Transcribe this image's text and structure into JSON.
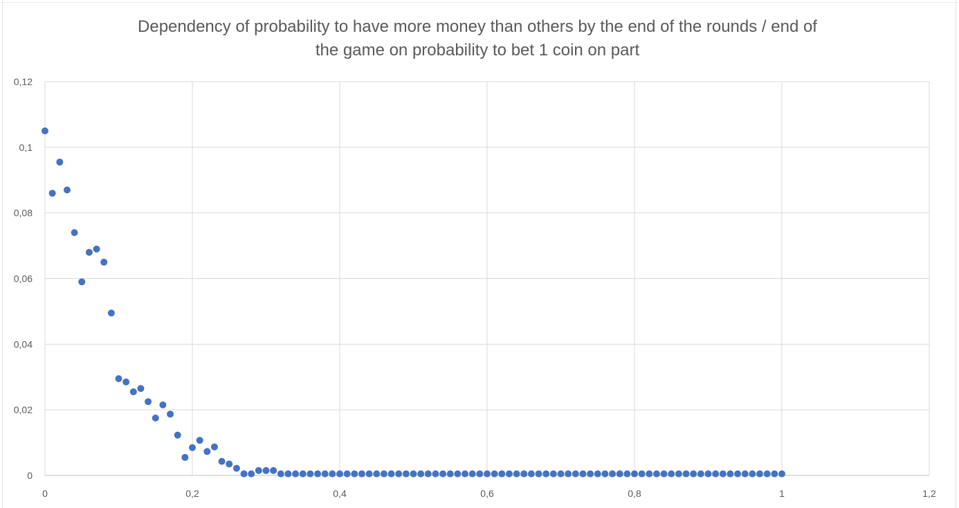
{
  "chart_data": {
    "type": "scatter",
    "title_lines": [
      "Dependency of probability to have more money than others by the end of the rounds / end of",
      "the game on probability to bet 1 coin on part"
    ],
    "xlabel": "",
    "ylabel": "",
    "xlim": [
      0,
      1.2
    ],
    "ylim": [
      0,
      0.12
    ],
    "x_ticks": [
      "0",
      "0,2",
      "0,4",
      "0,6",
      "0,8",
      "1",
      "1,2"
    ],
    "y_ticks": [
      "0",
      "0,02",
      "0,04",
      "0,06",
      "0,08",
      "0,1",
      "0,12"
    ],
    "grid": true,
    "legend": "none",
    "marker_color": "#4472C4",
    "points": [
      [
        0.0,
        0.105
      ],
      [
        0.01,
        0.086
      ],
      [
        0.02,
        0.0955
      ],
      [
        0.03,
        0.087
      ],
      [
        0.04,
        0.074
      ],
      [
        0.05,
        0.059
      ],
      [
        0.06,
        0.068
      ],
      [
        0.07,
        0.069
      ],
      [
        0.08,
        0.065
      ],
      [
        0.09,
        0.0495
      ],
      [
        0.1,
        0.0295
      ],
      [
        0.11,
        0.0285
      ],
      [
        0.12,
        0.0255
      ],
      [
        0.13,
        0.0265
      ],
      [
        0.14,
        0.0225
      ],
      [
        0.15,
        0.0175
      ],
      [
        0.16,
        0.0215
      ],
      [
        0.17,
        0.0187
      ],
      [
        0.18,
        0.0123
      ],
      [
        0.19,
        0.0055
      ],
      [
        0.2,
        0.0085
      ],
      [
        0.21,
        0.0107
      ],
      [
        0.22,
        0.0073
      ],
      [
        0.23,
        0.0087
      ],
      [
        0.24,
        0.0043
      ],
      [
        0.25,
        0.0035
      ],
      [
        0.26,
        0.0022
      ],
      [
        0.27,
        0.0005
      ],
      [
        0.28,
        0.0005
      ],
      [
        0.29,
        0.0015
      ],
      [
        0.3,
        0.0015
      ],
      [
        0.31,
        0.0015
      ],
      [
        0.32,
        0.0005
      ],
      [
        0.33,
        0.0005
      ],
      [
        0.34,
        0.0005
      ],
      [
        0.35,
        0.0005
      ],
      [
        0.36,
        0.0005
      ],
      [
        0.37,
        0.0005
      ],
      [
        0.38,
        0.0005
      ],
      [
        0.39,
        0.0005
      ],
      [
        0.4,
        0.0005
      ],
      [
        0.41,
        0.0005
      ],
      [
        0.42,
        0.0005
      ],
      [
        0.43,
        0.0005
      ],
      [
        0.44,
        0.0005
      ],
      [
        0.45,
        0.0005
      ],
      [
        0.46,
        0.0005
      ],
      [
        0.47,
        0.0005
      ],
      [
        0.48,
        0.0005
      ],
      [
        0.49,
        0.0005
      ],
      [
        0.5,
        0.0005
      ],
      [
        0.51,
        0.0005
      ],
      [
        0.52,
        0.0005
      ],
      [
        0.53,
        0.0005
      ],
      [
        0.54,
        0.0005
      ],
      [
        0.55,
        0.0005
      ],
      [
        0.56,
        0.0005
      ],
      [
        0.57,
        0.0005
      ],
      [
        0.58,
        0.0005
      ],
      [
        0.59,
        0.0005
      ],
      [
        0.6,
        0.0005
      ],
      [
        0.61,
        0.0005
      ],
      [
        0.62,
        0.0005
      ],
      [
        0.63,
        0.0005
      ],
      [
        0.64,
        0.0005
      ],
      [
        0.65,
        0.0005
      ],
      [
        0.66,
        0.0005
      ],
      [
        0.67,
        0.0005
      ],
      [
        0.68,
        0.0005
      ],
      [
        0.69,
        0.0005
      ],
      [
        0.7,
        0.0005
      ],
      [
        0.71,
        0.0005
      ],
      [
        0.72,
        0.0005
      ],
      [
        0.73,
        0.0005
      ],
      [
        0.74,
        0.0005
      ],
      [
        0.75,
        0.0005
      ],
      [
        0.76,
        0.0005
      ],
      [
        0.77,
        0.0005
      ],
      [
        0.78,
        0.0005
      ],
      [
        0.79,
        0.0005
      ],
      [
        0.8,
        0.0005
      ],
      [
        0.81,
        0.0005
      ],
      [
        0.82,
        0.0005
      ],
      [
        0.83,
        0.0005
      ],
      [
        0.84,
        0.0005
      ],
      [
        0.85,
        0.0005
      ],
      [
        0.86,
        0.0005
      ],
      [
        0.87,
        0.0005
      ],
      [
        0.88,
        0.0005
      ],
      [
        0.89,
        0.0005
      ],
      [
        0.9,
        0.0005
      ],
      [
        0.91,
        0.0005
      ],
      [
        0.92,
        0.0005
      ],
      [
        0.93,
        0.0005
      ],
      [
        0.94,
        0.0005
      ],
      [
        0.95,
        0.0005
      ],
      [
        0.96,
        0.0005
      ],
      [
        0.97,
        0.0005
      ],
      [
        0.98,
        0.0005
      ],
      [
        0.99,
        0.0005
      ],
      [
        1.0,
        0.0005
      ]
    ]
  }
}
